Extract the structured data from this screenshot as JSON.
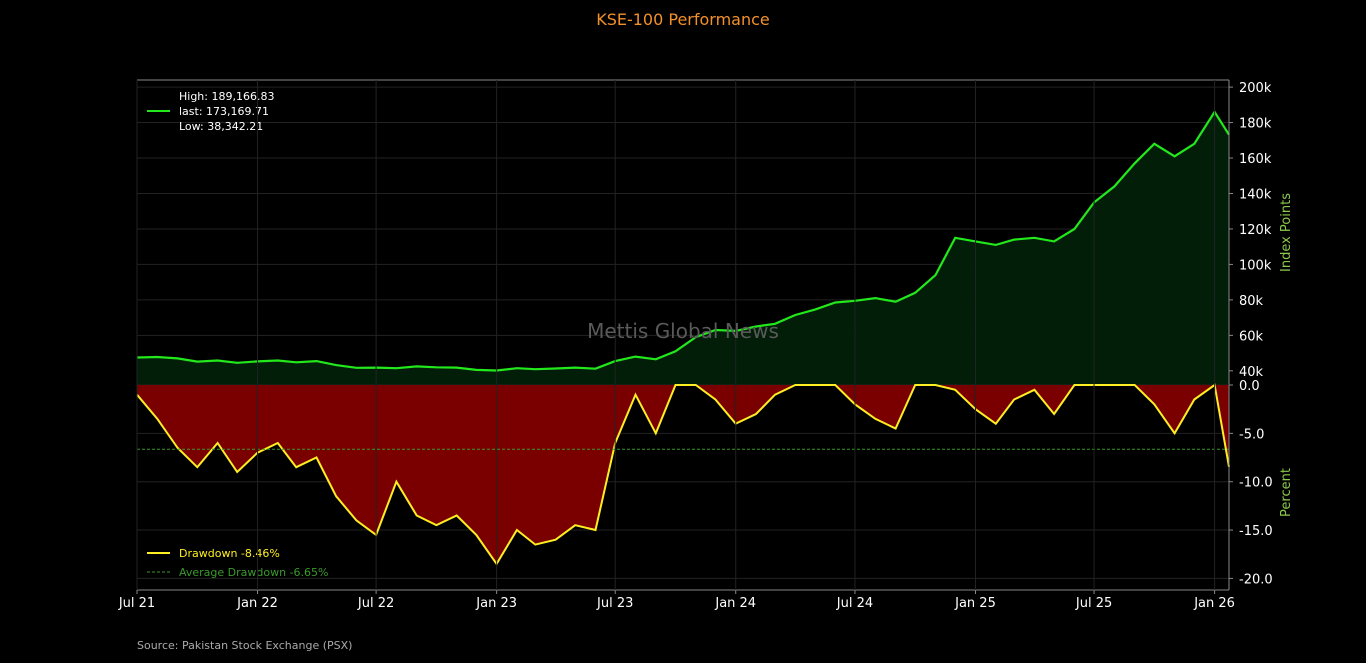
{
  "chart_data": [
    {
      "type": "area",
      "title": "KSE-100 Performance",
      "ylabel": "Index Points",
      "ylim": [
        32000,
        204000
      ],
      "yticks": [
        40000,
        60000,
        80000,
        100000,
        120000,
        140000,
        160000,
        180000,
        200000
      ],
      "ytick_labels": [
        "40k",
        "60k",
        "80k",
        "100k",
        "120k",
        "140k",
        "160k",
        "180k",
        "200k"
      ],
      "x_range": [
        "2021-07-01",
        "2026-01-23"
      ],
      "xticks": [
        "2021-07-01",
        "2022-01-01",
        "2022-07-01",
        "2023-01-01",
        "2023-07-01",
        "2024-01-01",
        "2024-07-01",
        "2025-01-01",
        "2025-07-01",
        "2026-01-01"
      ],
      "xtick_labels": [
        "Jul 21",
        "Jan 22",
        "Jul 22",
        "Jan 23",
        "Jul 23",
        "Jan 24",
        "Jul 24",
        "Jan 25",
        "Jul 25",
        "Jan 26"
      ],
      "grid": true,
      "legend_position": "top-left",
      "legend": [
        "High: 189,166.83",
        "last: 173,169.71",
        "Low: 38,342.21"
      ],
      "line_color": "#22e81c",
      "fill_color": "#02200a",
      "series": [
        {
          "x": [
            "2021-07-01",
            "2021-08-01",
            "2021-09-01",
            "2021-10-01",
            "2021-11-01",
            "2021-12-01",
            "2022-01-01",
            "2022-02-01",
            "2022-03-01",
            "2022-04-01",
            "2022-05-01",
            "2022-06-01",
            "2022-07-01",
            "2022-08-01",
            "2022-09-01",
            "2022-10-01",
            "2022-11-01",
            "2022-12-01",
            "2023-01-01",
            "2023-02-01",
            "2023-03-01",
            "2023-04-01",
            "2023-05-01",
            "2023-06-01",
            "2023-07-01",
            "2023-08-01",
            "2023-09-01",
            "2023-10-01",
            "2023-11-01",
            "2023-12-01",
            "2024-01-01",
            "2024-02-01",
            "2024-03-01",
            "2024-04-01",
            "2024-05-01",
            "2024-06-01",
            "2024-07-01",
            "2024-08-01",
            "2024-09-01",
            "2024-10-01",
            "2024-11-01",
            "2024-12-01",
            "2025-01-01",
            "2025-02-01",
            "2025-03-01",
            "2025-04-01",
            "2025-05-01",
            "2025-06-01",
            "2025-07-01",
            "2025-08-01",
            "2025-09-01",
            "2025-10-01",
            "2025-11-01",
            "2025-12-01",
            "2026-01-01",
            "2026-01-23"
          ],
          "values": [
            47500,
            47800,
            47000,
            45200,
            45800,
            44500,
            45300,
            45800,
            44800,
            45500,
            43200,
            41700,
            41800,
            41500,
            42500,
            42000,
            41800,
            40500,
            40200,
            41500,
            40900,
            41300,
            41800,
            41200,
            45500,
            48000,
            46500,
            51000,
            59000,
            63000,
            62500,
            65000,
            66500,
            71500,
            74500,
            78500,
            79500,
            81000,
            79000,
            84000,
            94000,
            115000,
            113000,
            111000,
            114000,
            115000,
            113000,
            120000,
            135000,
            144000,
            157000,
            168000,
            161000,
            168000,
            186000,
            173170
          ]
        }
      ]
    },
    {
      "type": "area",
      "ylabel": "Percent",
      "ylim": [
        -21.2,
        0
      ],
      "yticks": [
        0,
        -5,
        -10,
        -15,
        -20
      ],
      "ytick_labels": [
        "0.0",
        "-5.0",
        "-10.0",
        "-15.0",
        "-20.0"
      ],
      "grid": true,
      "legend_position": "bottom-left",
      "legend": [
        "Drawdown -8.46%",
        "Average Drawdown -6.65%"
      ],
      "average_drawdown": -6.65,
      "line_color": "#ffee22",
      "fill_color": "#7a0000",
      "average_line_color": "#3a9a2a",
      "series": [
        {
          "x": [
            "2021-07-01",
            "2021-08-01",
            "2021-09-01",
            "2021-10-01",
            "2021-11-01",
            "2021-12-01",
            "2022-01-01",
            "2022-02-01",
            "2022-03-01",
            "2022-04-01",
            "2022-05-01",
            "2022-06-01",
            "2022-07-01",
            "2022-08-01",
            "2022-09-01",
            "2022-10-01",
            "2022-11-01",
            "2022-12-01",
            "2023-01-01",
            "2023-02-01",
            "2023-03-01",
            "2023-04-01",
            "2023-05-01",
            "2023-06-01",
            "2023-07-01",
            "2023-08-01",
            "2023-09-01",
            "2023-10-01",
            "2023-11-01",
            "2023-12-01",
            "2024-01-01",
            "2024-02-01",
            "2024-03-01",
            "2024-04-01",
            "2024-05-01",
            "2024-06-01",
            "2024-07-01",
            "2024-08-01",
            "2024-09-01",
            "2024-10-01",
            "2024-11-01",
            "2024-12-01",
            "2025-01-01",
            "2025-02-01",
            "2025-03-01",
            "2025-04-01",
            "2025-05-01",
            "2025-06-01",
            "2025-07-01",
            "2025-08-01",
            "2025-09-01",
            "2025-10-01",
            "2025-11-01",
            "2025-12-01",
            "2026-01-01",
            "2026-01-23"
          ],
          "values": [
            -1.0,
            -3.5,
            -6.5,
            -8.5,
            -6.0,
            -9.0,
            -7.0,
            -6.0,
            -8.5,
            -7.5,
            -11.5,
            -14.0,
            -15.5,
            -10.0,
            -13.5,
            -14.5,
            -13.5,
            -15.5,
            -18.5,
            -15.0,
            -16.5,
            -16.0,
            -14.5,
            -15.0,
            -6.0,
            -1.0,
            -5.0,
            0.0,
            0.0,
            -1.5,
            -4.0,
            -3.0,
            -1.0,
            0.0,
            0.0,
            0.0,
            -2.0,
            -3.5,
            -4.5,
            0.0,
            0.0,
            -0.5,
            -2.5,
            -4.0,
            -1.5,
            -0.5,
            -3.0,
            0.0,
            0.0,
            0.0,
            0.0,
            -2.0,
            -5.0,
            -1.5,
            0.0,
            -8.46
          ]
        }
      ]
    }
  ],
  "watermark": "Mettis Global News",
  "source": "Source: Pakistan Stock Exchange (PSX)"
}
